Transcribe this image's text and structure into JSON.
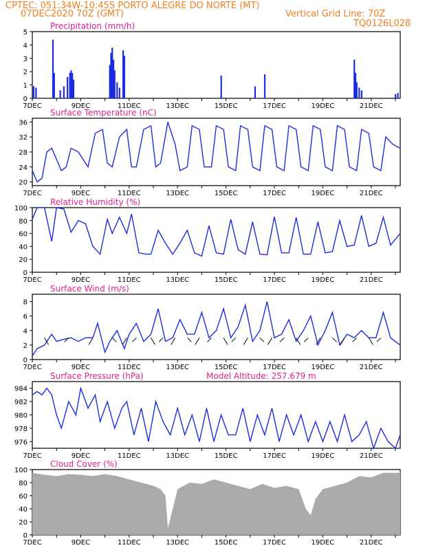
{
  "header": {
    "line1_left": "CPTEC:  051:34W-10:45S  PORTO ALEGRE DO NORTE (MT)",
    "line2_left": "07DEC2020 70Z (GMT)",
    "line2_right": "Vertical Grid Line: 70Z",
    "line3_right": "TQ0126L028"
  },
  "colors": {
    "header": "#f07f1e",
    "title": "#e0208f",
    "line": "#1a2be0",
    "cloud": "#aaaaaa",
    "axis": "#000000"
  },
  "x_ticks": [
    "7DEC",
    "9DEC",
    "11DEC",
    "13DEC",
    "15DEC",
    "17DEC",
    "19DEC",
    "21DEC"
  ],
  "x_range_days": [
    7,
    22.2
  ],
  "chart_data": [
    {
      "id": "precip",
      "type": "bar",
      "title": "Precipitation (mm/h)",
      "ylim": [
        0,
        5
      ],
      "yticks": [
        0,
        1,
        2,
        3,
        4,
        5
      ],
      "x": [
        7.05,
        7.15,
        7.85,
        7.9,
        8.15,
        8.3,
        8.45,
        8.55,
        8.6,
        8.65,
        8.7,
        10.2,
        10.25,
        10.3,
        10.35,
        10.4,
        10.5,
        10.6,
        10.75,
        10.8,
        14.8,
        16.2,
        16.6,
        20.3,
        20.35,
        20.4,
        20.5,
        20.6,
        22.0,
        22.1
      ],
      "values": [
        0.9,
        0.8,
        4.4,
        1.9,
        0.6,
        0.9,
        1.6,
        1.9,
        2.1,
        1.9,
        1.4,
        2.5,
        3.4,
        3.8,
        2.9,
        2.1,
        1.2,
        0.8,
        3.6,
        3.2,
        1.7,
        0.9,
        1.8,
        2.9,
        1.9,
        1.2,
        0.8,
        0.6,
        0.3,
        0.4
      ]
    },
    {
      "id": "temp",
      "type": "line",
      "title": "Surface Temperature (nC)",
      "ylim": [
        19,
        37
      ],
      "yticks": [
        20,
        24,
        28,
        32,
        36
      ],
      "x": [
        7,
        7.2,
        7.4,
        7.6,
        7.8,
        8,
        8.2,
        8.4,
        8.6,
        8.9,
        9.1,
        9.3,
        9.6,
        9.9,
        10.1,
        10.3,
        10.6,
        10.9,
        11.1,
        11.3,
        11.6,
        11.9,
        12.1,
        12.3,
        12.6,
        12.9,
        13.1,
        13.4,
        13.6,
        13.9,
        14.1,
        14.4,
        14.6,
        14.9,
        15.1,
        15.4,
        15.6,
        15.9,
        16.1,
        16.4,
        16.6,
        16.9,
        17.1,
        17.4,
        17.6,
        17.9,
        18.1,
        18.4,
        18.6,
        18.9,
        19.1,
        19.4,
        19.6,
        19.9,
        20.1,
        20.4,
        20.6,
        20.9,
        21.1,
        21.4,
        21.6,
        21.9,
        22.2
      ],
      "values": [
        23,
        20,
        21,
        28,
        29,
        26,
        23,
        24,
        29,
        28,
        26,
        24,
        33,
        34,
        25,
        24,
        32,
        34,
        24,
        24,
        34,
        35,
        24,
        25,
        36,
        30,
        23,
        24,
        35,
        34,
        24,
        24,
        35,
        34,
        24,
        23,
        35,
        34,
        24,
        23,
        35,
        34,
        24,
        23,
        35,
        34,
        24,
        23,
        35,
        34,
        24,
        23,
        35,
        34,
        24,
        23,
        34,
        33,
        24,
        23,
        32,
        30,
        29
      ]
    },
    {
      "id": "rh",
      "type": "line",
      "title": "Relative Humidity (%)",
      "ylim": [
        0,
        100
      ],
      "yticks": [
        0,
        20,
        40,
        60,
        80,
        100
      ],
      "x": [
        7,
        7.2,
        7.5,
        7.8,
        8,
        8.3,
        8.6,
        8.9,
        9.2,
        9.5,
        9.8,
        10.1,
        10.3,
        10.6,
        10.9,
        11.1,
        11.4,
        11.7,
        11.9,
        12.2,
        12.5,
        12.8,
        13.1,
        13.4,
        13.7,
        14.0,
        14.3,
        14.6,
        14.9,
        15.2,
        15.5,
        15.8,
        16.1,
        16.4,
        16.7,
        17.0,
        17.3,
        17.6,
        17.9,
        18.2,
        18.5,
        18.8,
        19.1,
        19.4,
        19.7,
        20.0,
        20.3,
        20.6,
        20.9,
        21.2,
        21.5,
        21.8,
        22.2
      ],
      "values": [
        82,
        100,
        100,
        48,
        100,
        98,
        62,
        80,
        75,
        40,
        28,
        82,
        60,
        85,
        60,
        90,
        30,
        28,
        28,
        65,
        45,
        28,
        45,
        65,
        30,
        25,
        72,
        30,
        28,
        82,
        35,
        28,
        78,
        28,
        27,
        86,
        30,
        30,
        85,
        28,
        28,
        78,
        30,
        32,
        80,
        40,
        42,
        88,
        40,
        45,
        85,
        42,
        60
      ]
    },
    {
      "id": "wind",
      "type": "line",
      "title": "Surface Wind (m/s)",
      "ylim": [
        0,
        9
      ],
      "yticks": [
        0,
        2,
        4,
        6,
        8
      ],
      "x": [
        7,
        7.2,
        7.5,
        7.8,
        8,
        8.3,
        8.6,
        8.9,
        9.2,
        9.5,
        9.7,
        10,
        10.2,
        10.5,
        10.8,
        11,
        11.3,
        11.6,
        11.9,
        12.2,
        12.5,
        12.8,
        13.1,
        13.4,
        13.7,
        14.0,
        14.3,
        14.6,
        14.9,
        15.2,
        15.5,
        15.8,
        16.1,
        16.4,
        16.7,
        17.0,
        17.3,
        17.6,
        17.9,
        18.2,
        18.5,
        18.8,
        19.1,
        19.4,
        19.7,
        20.0,
        20.3,
        20.6,
        20.9,
        21.2,
        21.5,
        21.8,
        22.2
      ],
      "values": [
        0.5,
        1.5,
        2.0,
        3.5,
        2.5,
        2.8,
        3.0,
        2.5,
        3.0,
        3.0,
        5.0,
        1.0,
        2.5,
        4.0,
        1.5,
        3.5,
        5.0,
        2.5,
        3.5,
        7.0,
        2.5,
        3.0,
        5.5,
        3.5,
        3.5,
        6.5,
        3.0,
        4.0,
        7.0,
        3.0,
        4.5,
        7.5,
        2.5,
        4.0,
        8.0,
        3.0,
        3.5,
        5.5,
        2.5,
        4.0,
        6.0,
        2.0,
        4.0,
        6.5,
        2.0,
        3.5,
        3.0,
        4.0,
        3.0,
        3.0,
        6.5,
        3.0,
        2.0
      ],
      "arrows_x": [
        7.5,
        8.5,
        9.5,
        10.3,
        10.9,
        11.3,
        11.9,
        12.4,
        12.9,
        13.4,
        13.9,
        14.4,
        14.9,
        15.4,
        15.9,
        16.4,
        16.9,
        17.4,
        17.9,
        18.4,
        18.9,
        19.4,
        19.9,
        20.4,
        20.9,
        21.4
      ]
    },
    {
      "id": "pres",
      "type": "line",
      "title": "Surface Pressure (hPa)",
      "subtitle": "Model Altitude: 257.679  m",
      "ylim": [
        975,
        985
      ],
      "yticks": [
        976,
        978,
        980,
        982,
        984
      ],
      "x": [
        7,
        7.2,
        7.4,
        7.6,
        7.8,
        8,
        8.2,
        8.5,
        8.8,
        9,
        9.3,
        9.6,
        9.8,
        10.1,
        10.4,
        10.7,
        10.9,
        11.2,
        11.5,
        11.8,
        12.1,
        12.4,
        12.7,
        13,
        13.3,
        13.6,
        13.9,
        14.2,
        14.5,
        14.8,
        15.1,
        15.4,
        15.7,
        16,
        16.3,
        16.6,
        16.9,
        17.2,
        17.5,
        17.8,
        18.1,
        18.4,
        18.7,
        19,
        19.3,
        19.6,
        19.9,
        20.2,
        20.5,
        20.8,
        21.1,
        21.4,
        21.7,
        22.0,
        22.2
      ],
      "values": [
        983,
        983.5,
        983,
        984,
        983,
        980,
        978,
        982,
        980,
        984,
        981,
        983,
        979,
        982,
        978,
        981,
        982,
        977,
        981,
        976,
        982,
        979,
        977,
        981,
        977,
        980,
        976,
        981,
        976,
        980,
        977,
        977,
        981,
        976,
        980,
        977,
        981,
        976,
        980,
        977,
        980,
        976,
        979,
        976,
        979,
        976,
        980,
        976,
        977,
        979,
        975,
        978,
        976,
        975,
        977
      ]
    },
    {
      "id": "cloud",
      "type": "area",
      "title": "Cloud Cover (%)",
      "ylim": [
        0,
        100
      ],
      "yticks": [
        0,
        20,
        40,
        60,
        80,
        100
      ],
      "x": [
        7,
        7.5,
        8,
        8.5,
        9,
        9.5,
        10,
        10.5,
        11,
        11.5,
        12,
        12.3,
        12.5,
        12.6,
        13,
        13.5,
        14,
        14.5,
        15,
        15.5,
        16,
        16.5,
        17,
        17.5,
        18,
        18.3,
        18.5,
        18.7,
        19,
        19.5,
        20,
        20.5,
        21,
        21.5,
        22,
        22.2
      ],
      "values": [
        95,
        92,
        90,
        93,
        92,
        90,
        93,
        90,
        85,
        80,
        75,
        70,
        60,
        10,
        70,
        80,
        78,
        85,
        80,
        75,
        70,
        78,
        72,
        75,
        70,
        40,
        30,
        55,
        70,
        75,
        80,
        90,
        88,
        95,
        95,
        95
      ]
    }
  ]
}
